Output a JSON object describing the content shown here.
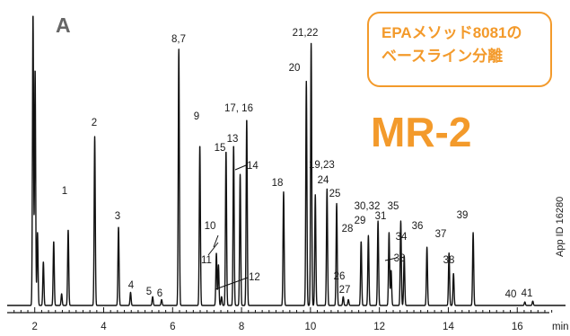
{
  "panel_letter": "A",
  "product_title": "MR-2",
  "callout": {
    "line1": "EPAメソッド8081の",
    "line2": "ベースライン分離"
  },
  "app_id": "App ID 16280",
  "colors": {
    "trace": "#111111",
    "accent": "#f39a2b",
    "panel_letter": "#666666"
  },
  "chart_data": {
    "type": "line",
    "title": "",
    "xlabel": "min",
    "ylabel": "",
    "xlim": [
      1.2,
      17.4
    ],
    "x_ticks": [
      2,
      4,
      6,
      8,
      10,
      12,
      14,
      16
    ],
    "x_tick_labels": [
      "2",
      "4",
      "6",
      "8",
      "10",
      "12",
      "14",
      "16"
    ],
    "grid": false,
    "legend": "none",
    "y_max_relative": 100,
    "solvent_peaks": [
      {
        "rt": 1.95,
        "height": 100
      },
      {
        "rt": 2.01,
        "height": 81
      },
      {
        "rt": 2.08,
        "height": 25
      },
      {
        "rt": 2.25,
        "height": 15
      },
      {
        "rt": 2.55,
        "height": 22
      },
      {
        "rt": 2.78,
        "height": 4
      }
    ],
    "peaks": [
      {
        "label": "1",
        "rt": 2.97,
        "height": 26
      },
      {
        "label": "2",
        "rt": 3.74,
        "height": 58
      },
      {
        "label": "3",
        "rt": 4.43,
        "height": 27
      },
      {
        "label": "4",
        "rt": 4.78,
        "height": 4.5
      },
      {
        "label": "5",
        "rt": 5.42,
        "height": 3
      },
      {
        "label": "6",
        "rt": 5.68,
        "height": 2
      },
      {
        "label": "8,7",
        "rt": 6.18,
        "height": 88
      },
      {
        "label": "9",
        "rt": 6.79,
        "height": 55
      },
      {
        "label": "10",
        "rt": 7.27,
        "height": 18
      },
      {
        "label": "11",
        "rt": 7.33,
        "height": 14
      },
      {
        "label": "12",
        "rt": 7.42,
        "height": 3
      },
      {
        "label": "15",
        "rt": 7.55,
        "height": 53
      },
      {
        "label": "13",
        "rt": 7.77,
        "height": 55
      },
      {
        "label": "14",
        "rt": 7.96,
        "height": 45
      },
      {
        "label": "17, 16",
        "rt": 8.15,
        "height": 64
      },
      {
        "label": "18",
        "rt": 9.22,
        "height": 39
      },
      {
        "label": "20",
        "rt": 9.88,
        "height": 77
      },
      {
        "label": "21,22",
        "rt": 10.02,
        "height": 90
      },
      {
        "label": "19,23",
        "rt": 10.14,
        "height": 38
      },
      {
        "label": "24",
        "rt": 10.48,
        "height": 40
      },
      {
        "label": "25",
        "rt": 10.76,
        "height": 35
      },
      {
        "label": "26",
        "rt": 10.95,
        "height": 3
      },
      {
        "label": "27",
        "rt": 11.1,
        "height": 2
      },
      {
        "label": "28",
        "rt": 11.47,
        "height": 22
      },
      {
        "label": "29",
        "rt": 11.68,
        "height": 24
      },
      {
        "label": "30,32",
        "rt": 11.96,
        "height": 29
      },
      {
        "label": "31",
        "rt": 12.28,
        "height": 25
      },
      {
        "label": "33",
        "rt": 12.34,
        "height": 12
      },
      {
        "label": "35",
        "rt": 12.62,
        "height": 29
      },
      {
        "label": "34",
        "rt": 12.72,
        "height": 17
      },
      {
        "label": "36",
        "rt": 13.38,
        "height": 20
      },
      {
        "label": "37",
        "rt": 14.02,
        "height": 18
      },
      {
        "label": "38",
        "rt": 14.15,
        "height": 11
      },
      {
        "label": "39",
        "rt": 14.72,
        "height": 25
      },
      {
        "label": "40",
        "rt": 16.22,
        "height": 1.2
      },
      {
        "label": "41",
        "rt": 16.45,
        "height": 1.5
      }
    ]
  }
}
